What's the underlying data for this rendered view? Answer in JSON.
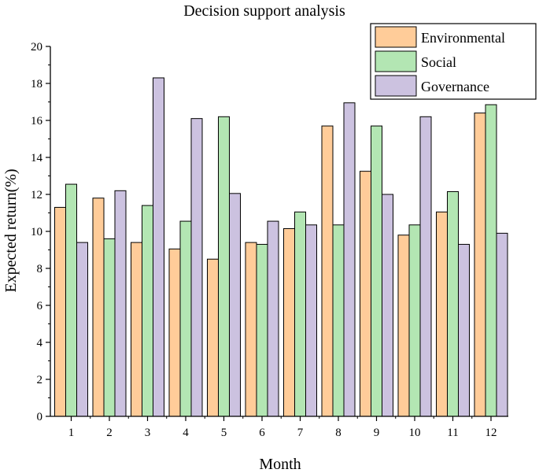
{
  "chart_data": {
    "type": "bar",
    "title": "Decision support analysis",
    "xlabel": "Month",
    "ylabel": "Expected return(%)",
    "ylim": [
      0,
      20
    ],
    "yticks": [
      "0",
      "2",
      "4",
      "6",
      "8",
      "10",
      "12",
      "14",
      "16",
      "18",
      "20"
    ],
    "categories": [
      "1",
      "2",
      "3",
      "4",
      "5",
      "6",
      "7",
      "8",
      "9",
      "10",
      "11",
      "12"
    ],
    "legend_position": "top-right",
    "series": [
      {
        "name": "Environmental",
        "color": "#FFCC99",
        "values": [
          11.3,
          11.8,
          9.4,
          9.05,
          8.5,
          9.4,
          10.15,
          15.7,
          13.25,
          9.8,
          11.05,
          16.4
        ]
      },
      {
        "name": "Social",
        "color": "#B3E6B3",
        "values": [
          12.55,
          9.6,
          11.4,
          10.55,
          16.2,
          9.3,
          11.05,
          10.35,
          15.7,
          10.35,
          12.15,
          16.85
        ]
      },
      {
        "name": "Governance",
        "color": "#CCC2E0",
        "values": [
          9.4,
          12.2,
          18.3,
          16.1,
          12.05,
          10.55,
          10.35,
          16.95,
          12.0,
          16.2,
          9.3,
          9.9
        ]
      }
    ]
  }
}
